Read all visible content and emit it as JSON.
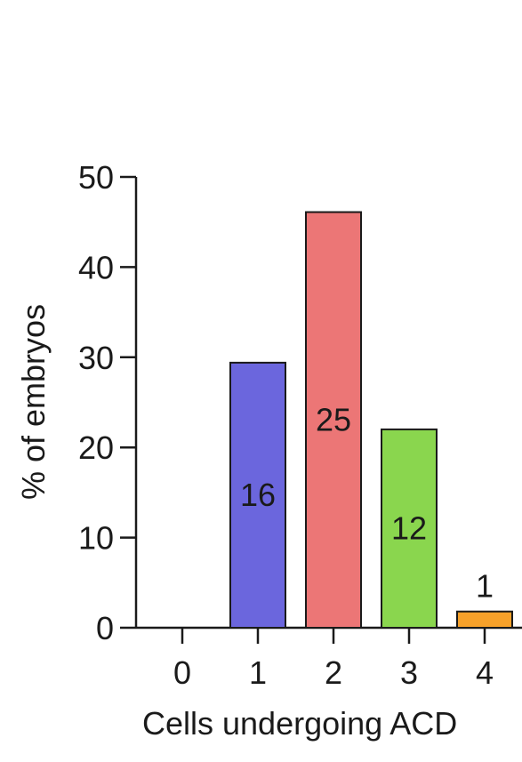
{
  "chart_data": {
    "type": "bar",
    "categories": [
      "0",
      "1",
      "2",
      "3",
      "4"
    ],
    "values": [
      0,
      29.4,
      46.1,
      22.0,
      1.8
    ],
    "bar_labels": [
      "",
      "16",
      "25",
      "12",
      "1"
    ],
    "colors": [
      "#ffffff",
      "#6b66dd",
      "#ec7676",
      "#8ad64e",
      "#f6a12a"
    ],
    "xlabel": "Cells undergoing ACD",
    "ylabel": "% of embryos",
    "ylim": [
      0,
      50
    ],
    "yticks": [
      "0",
      "10",
      "20",
      "30",
      "40",
      "50"
    ],
    "grid": false
  }
}
